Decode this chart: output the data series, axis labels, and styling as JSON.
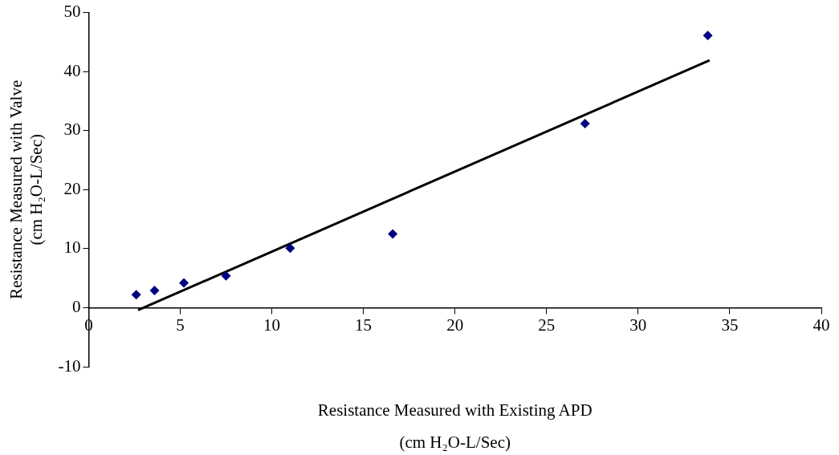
{
  "chart_data": {
    "type": "scatter",
    "xlabel": "Resistance Measured with Existing APD\n(cm H₂O-L/Sec)",
    "ylabel": "Resistance Measured with Valve\n(cm H₂O-L/Sec)",
    "xlim": [
      0,
      40
    ],
    "xticks": [
      0,
      5,
      10,
      15,
      20,
      25,
      30,
      35,
      40
    ],
    "ylim": [
      -10,
      50
    ],
    "yticks": [
      -10,
      0,
      10,
      20,
      30,
      40,
      50
    ],
    "grid": false,
    "legend": false,
    "marker": "diamond",
    "series": [
      {
        "color": "#000080",
        "x": [
          2.6,
          3.6,
          5.2,
          7.5,
          11.0,
          16.6,
          27.1,
          33.8
        ],
        "values": [
          2.2,
          2.9,
          4.2,
          5.4,
          10.1,
          12.5,
          31.2,
          46.1
        ]
      },
      {
        "type": "line",
        "color": "#000000",
        "marker": "none",
        "line_style": "solid",
        "x": [
          2.7,
          33.9
        ],
        "values": [
          -0.4,
          41.9
        ]
      }
    ]
  }
}
